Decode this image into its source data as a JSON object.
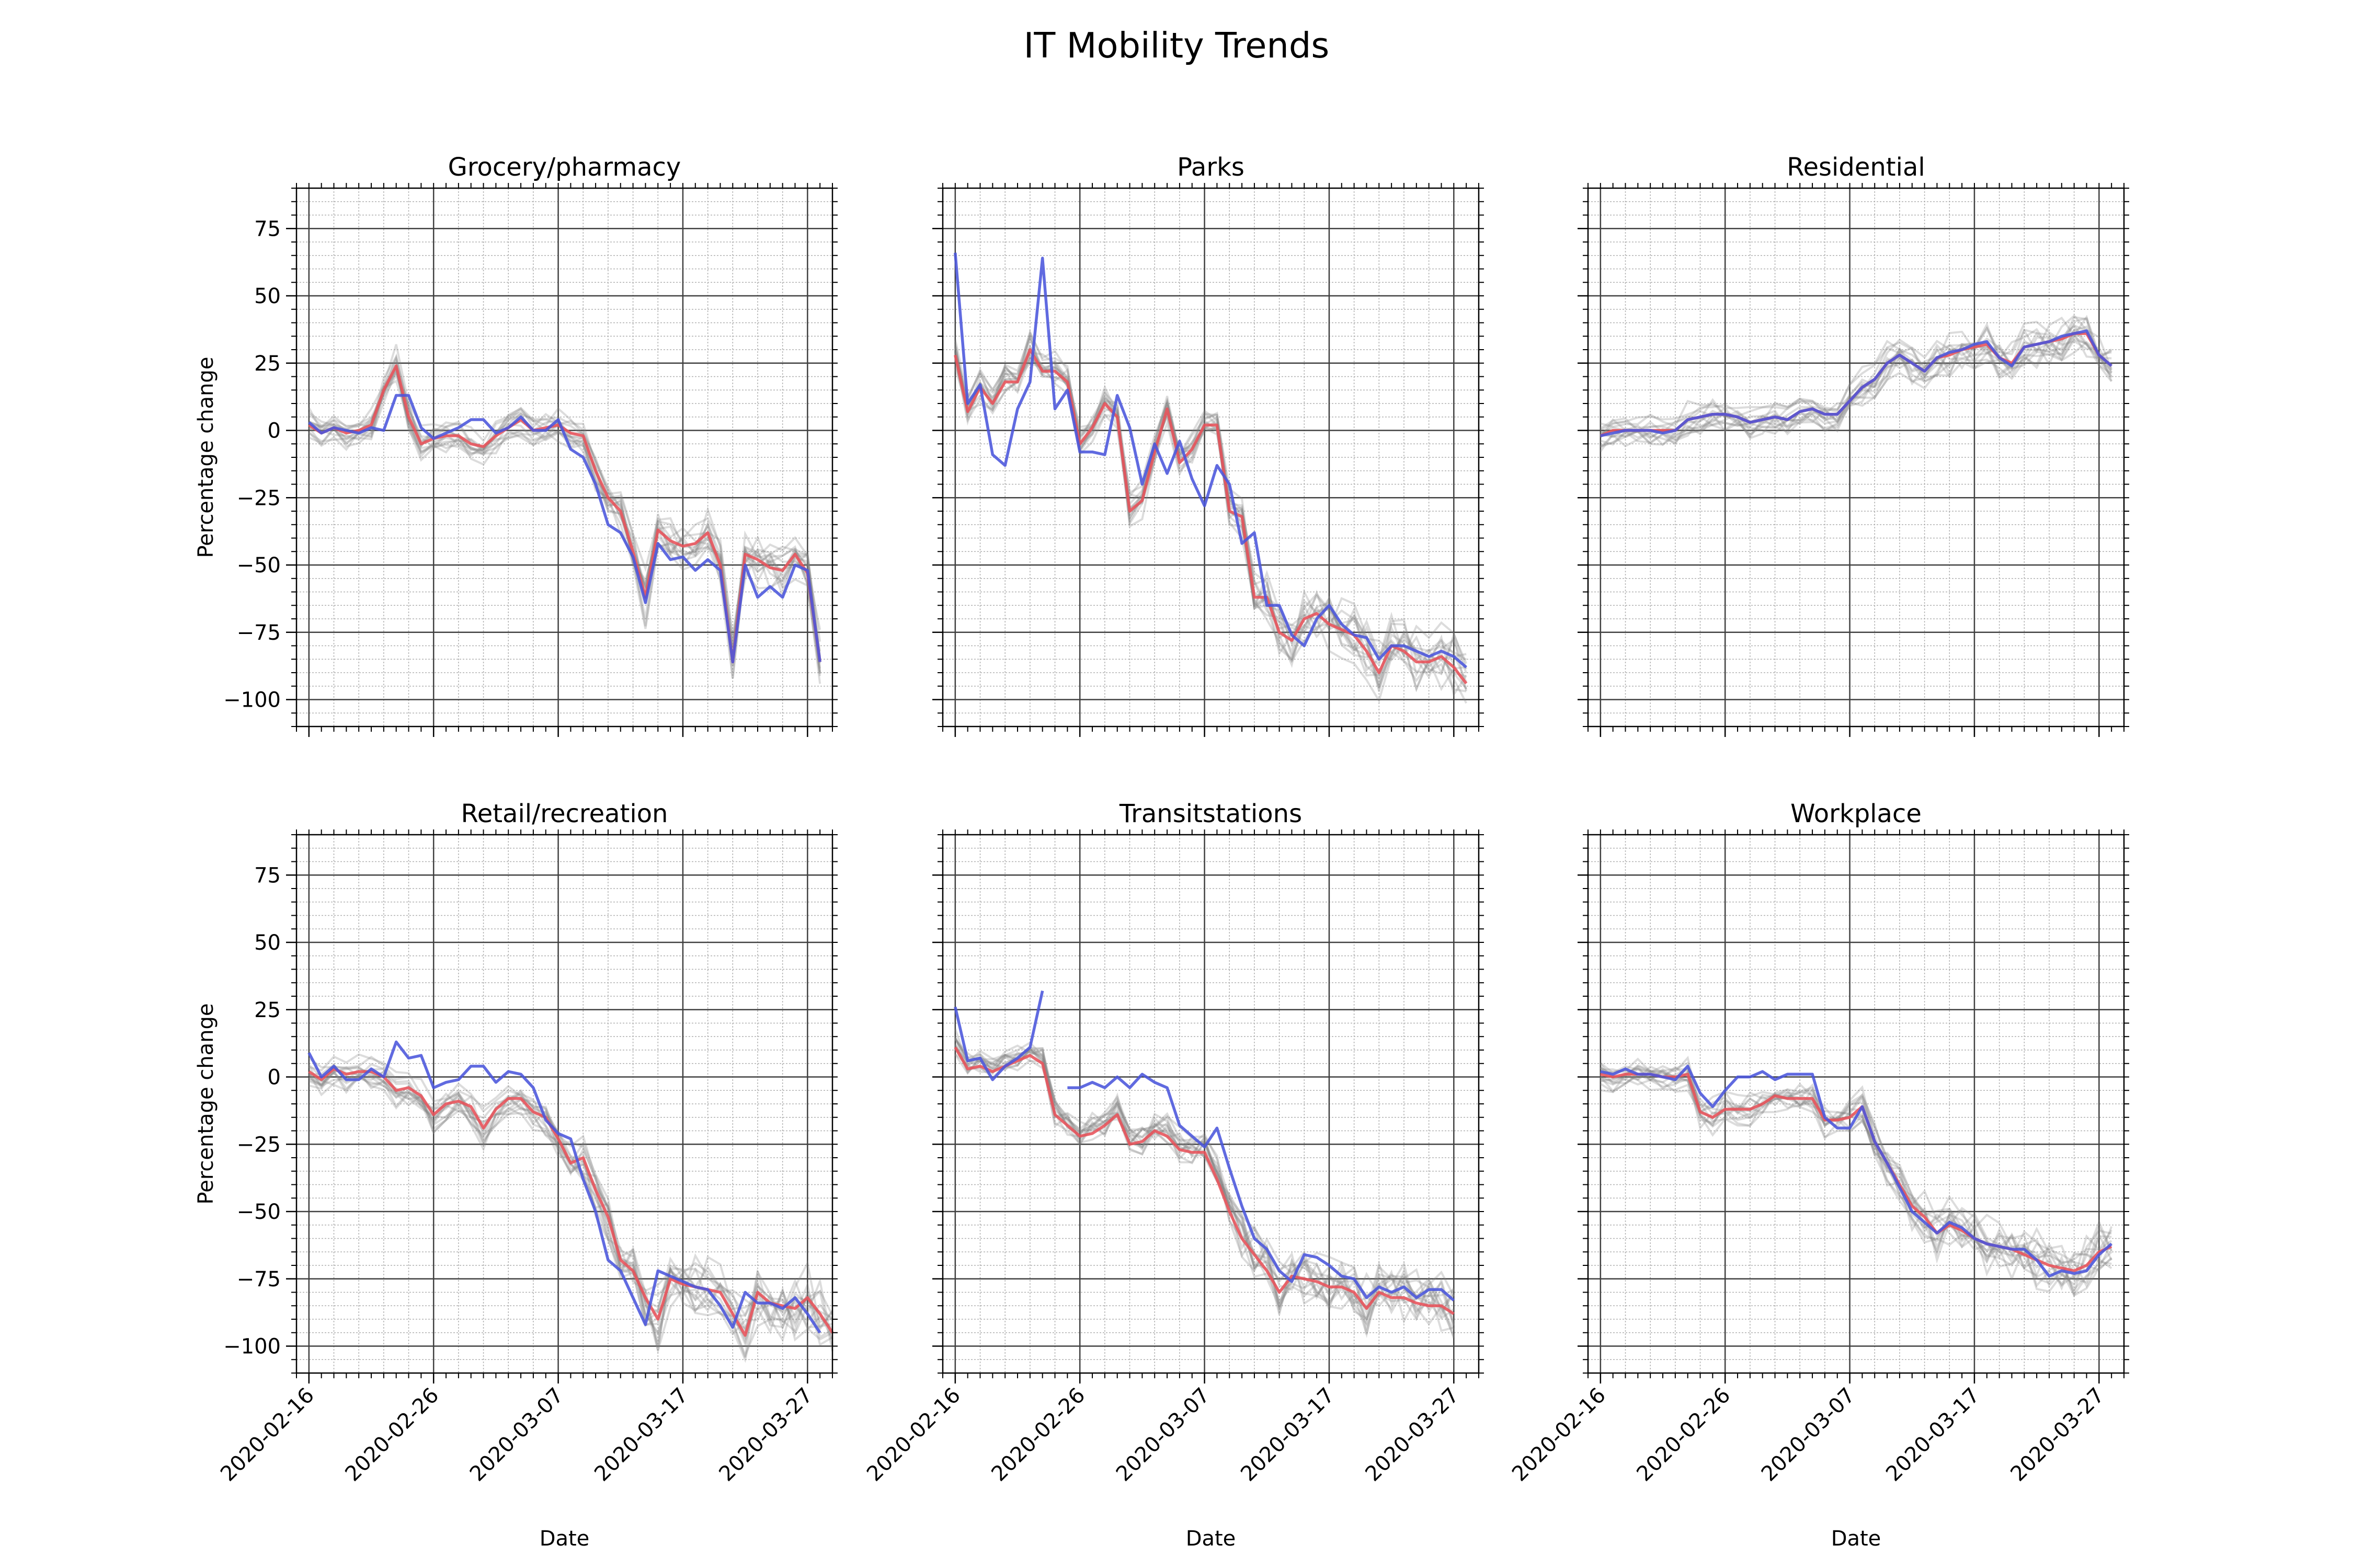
{
  "figure": {
    "title": "IT Mobility Trends"
  },
  "chart_data": [
    {
      "type": "line",
      "title": "Grocery/pharmacy",
      "xlabel": "",
      "ylabel": "Percentage change",
      "x_start": "2020-02-15",
      "x_end": "2020-03-29",
      "ylim": [
        -110,
        90
      ],
      "xticks": [
        "2020-02-16",
        "2020-02-26",
        "2020-03-07",
        "2020-03-17",
        "2020-03-27"
      ],
      "yticks": [
        75,
        50,
        25,
        0,
        -25,
        -50,
        -75,
        -100
      ],
      "grid": true,
      "series": [
        {
          "color": "#e8525a",
          "values": [
            2,
            -1,
            1,
            -1,
            0,
            2,
            15,
            24,
            5,
            -5,
            -3,
            -2,
            -2,
            -5,
            -6,
            -2,
            1,
            4,
            0,
            1,
            2,
            -1,
            -2,
            -15,
            -25,
            -30,
            -45,
            -62,
            -37,
            -41,
            -43,
            -42,
            -38,
            -50,
            -86,
            -46,
            -48,
            -51,
            -52,
            -46,
            -53,
            -86
          ]
        },
        {
          "color": "#4a55dc",
          "values": [
            3,
            -1,
            1,
            0,
            -1,
            1,
            0,
            13,
            13,
            1,
            -3,
            -1,
            1,
            4,
            4,
            -1,
            1,
            5,
            0,
            0,
            4,
            -7,
            -10,
            -20,
            -35,
            -38,
            -47,
            -64,
            -42,
            -48,
            -47,
            -52,
            -48,
            -52,
            -86,
            -50,
            -62,
            -58,
            -62,
            -50,
            -52,
            -86
          ]
        }
      ]
    },
    {
      "type": "line",
      "title": "Parks",
      "xlabel": "",
      "ylabel": "",
      "x_start": "2020-02-15",
      "x_end": "2020-03-29",
      "ylim": [
        -110,
        90
      ],
      "xticks": [
        "2020-02-16",
        "2020-02-26",
        "2020-03-07",
        "2020-03-17",
        "2020-03-27"
      ],
      "yticks": [
        75,
        50,
        25,
        0,
        -25,
        -50,
        -75,
        -100
      ],
      "grid": true,
      "series": [
        {
          "color": "#e8525a",
          "values": [
            28,
            7,
            16,
            10,
            18,
            18,
            30,
            22,
            22,
            18,
            -5,
            1,
            10,
            5,
            -30,
            -26,
            -8,
            8,
            -12,
            -7,
            2,
            2,
            -30,
            -32,
            -62,
            -62,
            -75,
            -78,
            -70,
            -68,
            -72,
            -74,
            -76,
            -82,
            -90,
            -80,
            -82,
            -86,
            -86,
            -84,
            -88,
            -94
          ]
        },
        {
          "color": "#4a55dc",
          "values": [
            66,
            10,
            17,
            -9,
            -13,
            8,
            18,
            64,
            8,
            15,
            -8,
            -8,
            -9,
            13,
            1,
            -20,
            -5,
            -16,
            -4,
            -18,
            -28,
            -13,
            -20,
            -42,
            -38,
            -65,
            -65,
            -76,
            -80,
            -70,
            -65,
            -72,
            -76,
            -77,
            -85,
            -80,
            -80,
            -82,
            -84,
            -82,
            -84,
            -88
          ]
        }
      ]
    },
    {
      "type": "line",
      "title": "Residential",
      "xlabel": "",
      "ylabel": "",
      "x_start": "2020-02-15",
      "x_end": "2020-03-29",
      "ylim": [
        -110,
        90
      ],
      "xticks": [
        "2020-02-16",
        "2020-02-26",
        "2020-03-07",
        "2020-03-17",
        "2020-03-27"
      ],
      "yticks": [
        75,
        50,
        25,
        0,
        -25,
        -50,
        -75,
        -100
      ],
      "grid": true,
      "series": [
        {
          "color": "#e8525a",
          "values": [
            -2,
            0,
            0,
            0,
            0,
            0,
            0,
            4,
            5,
            6,
            6,
            5,
            3,
            4,
            5,
            4,
            7,
            8,
            6,
            6,
            11,
            16,
            19,
            25,
            28,
            25,
            22,
            27,
            28,
            30,
            31,
            32,
            27,
            25,
            31,
            32,
            33,
            34,
            36,
            36,
            28,
            24
          ]
        },
        {
          "color": "#4a55dc",
          "values": [
            -2,
            -1,
            0,
            0,
            0,
            -1,
            0,
            4,
            5,
            6,
            6,
            5,
            3,
            4,
            5,
            4,
            7,
            8,
            6,
            6,
            11,
            16,
            19,
            25,
            28,
            25,
            22,
            27,
            29,
            30,
            32,
            33,
            27,
            24,
            31,
            32,
            33,
            35,
            36,
            37,
            28,
            24
          ]
        }
      ]
    },
    {
      "type": "line",
      "title": "Retail/recreation",
      "xlabel": "Date",
      "ylabel": "Percentage change",
      "x_start": "2020-02-15",
      "x_end": "2020-03-29",
      "ylim": [
        -110,
        90
      ],
      "xticks": [
        "2020-02-16",
        "2020-02-26",
        "2020-03-07",
        "2020-03-17",
        "2020-03-27"
      ],
      "yticks": [
        75,
        50,
        25,
        0,
        -25,
        -50,
        -75,
        -100
      ],
      "grid": true,
      "series": [
        {
          "color": "#e8525a",
          "values": [
            2,
            -1,
            3,
            1,
            2,
            2,
            0,
            -5,
            -4,
            -7,
            -14,
            -10,
            -9,
            -11,
            -19,
            -12,
            -8,
            -8,
            -13,
            -15,
            -23,
            -32,
            -30,
            -42,
            -52,
            -68,
            -72,
            -82,
            -90,
            -75,
            -77,
            -78,
            -79,
            -80,
            -88,
            -96,
            -80,
            -84,
            -85,
            -86,
            -82,
            -88,
            -95
          ]
        },
        {
          "color": "#4a55dc",
          "values": [
            9,
            0,
            4,
            -1,
            -1,
            3,
            0,
            13,
            7,
            8,
            -4,
            -2,
            -1,
            4,
            4,
            -2,
            2,
            1,
            -4,
            -16,
            -21,
            -23,
            -38,
            -50,
            -68,
            -72,
            -82,
            -92,
            -72,
            -74,
            -76,
            -78,
            -79,
            -85,
            -93,
            -80,
            -84,
            -84,
            -86,
            -82,
            -88,
            -95
          ]
        }
      ]
    },
    {
      "type": "line",
      "title": "Transitstations",
      "xlabel": "Date",
      "ylabel": "",
      "x_start": "2020-02-15",
      "x_end": "2020-03-29",
      "ylim": [
        -110,
        90
      ],
      "xticks": [
        "2020-02-16",
        "2020-02-26",
        "2020-03-07",
        "2020-03-17",
        "2020-03-27"
      ],
      "yticks": [
        75,
        50,
        25,
        0,
        -25,
        -50,
        -75,
        -100
      ],
      "grid": true,
      "series": [
        {
          "color": "#e8525a",
          "values": [
            11,
            3,
            4,
            2,
            4,
            6,
            8,
            5,
            -14,
            -18,
            -22,
            -21,
            -18,
            -14,
            -25,
            -24,
            -20,
            -22,
            -27,
            -28,
            -28,
            -38,
            -50,
            -60,
            -66,
            -72,
            -80,
            -74,
            -75,
            -76,
            -78,
            -78,
            -80,
            -86,
            -80,
            -82,
            -82,
            -84,
            -85,
            -85,
            -88
          ]
        },
        {
          "color": "#4a55dc",
          "values": [
            26,
            6,
            7,
            -1,
            4,
            7,
            11,
            32,
            null,
            -4,
            -4,
            -2,
            -4,
            0,
            -4,
            1,
            -2,
            -4,
            -18,
            -22,
            -26,
            -19,
            -34,
            -48,
            -60,
            -64,
            -72,
            -76,
            -66,
            -67,
            -70,
            -74,
            -75,
            -82,
            -78,
            -80,
            -78,
            -82,
            -79,
            -79,
            -83
          ]
        }
      ]
    },
    {
      "type": "line",
      "title": "Workplace",
      "xlabel": "Date",
      "ylabel": "",
      "x_start": "2020-02-15",
      "x_end": "2020-03-29",
      "ylim": [
        -110,
        90
      ],
      "xticks": [
        "2020-02-16",
        "2020-02-26",
        "2020-03-07",
        "2020-03-17",
        "2020-03-27"
      ],
      "yticks": [
        75,
        50,
        25,
        0,
        -25,
        -50,
        -75,
        -100
      ],
      "grid": true,
      "series": [
        {
          "color": "#e8525a",
          "values": [
            1,
            0,
            1,
            1,
            1,
            0,
            0,
            1,
            -13,
            -15,
            -12,
            -12,
            -12,
            -10,
            -7,
            -8,
            -8,
            -8,
            -16,
            -16,
            -15,
            -11,
            -24,
            -32,
            -40,
            -48,
            -52,
            -58,
            -55,
            -57,
            -60,
            -62,
            -63,
            -64,
            -66,
            -68,
            -70,
            -71,
            -72,
            -70,
            -65,
            -63
          ]
        },
        {
          "color": "#4a55dc",
          "values": [
            2,
            1,
            3,
            1,
            1,
            0,
            -1,
            4,
            -6,
            -11,
            -5,
            0,
            0,
            2,
            -1,
            1,
            1,
            1,
            -15,
            -19,
            -19,
            -11,
            -24,
            -32,
            -41,
            -50,
            -54,
            -58,
            -54,
            -56,
            -60,
            -62,
            -63,
            -64,
            -64,
            -68,
            -74,
            -72,
            -73,
            -72,
            -66,
            -62
          ]
        }
      ]
    }
  ]
}
